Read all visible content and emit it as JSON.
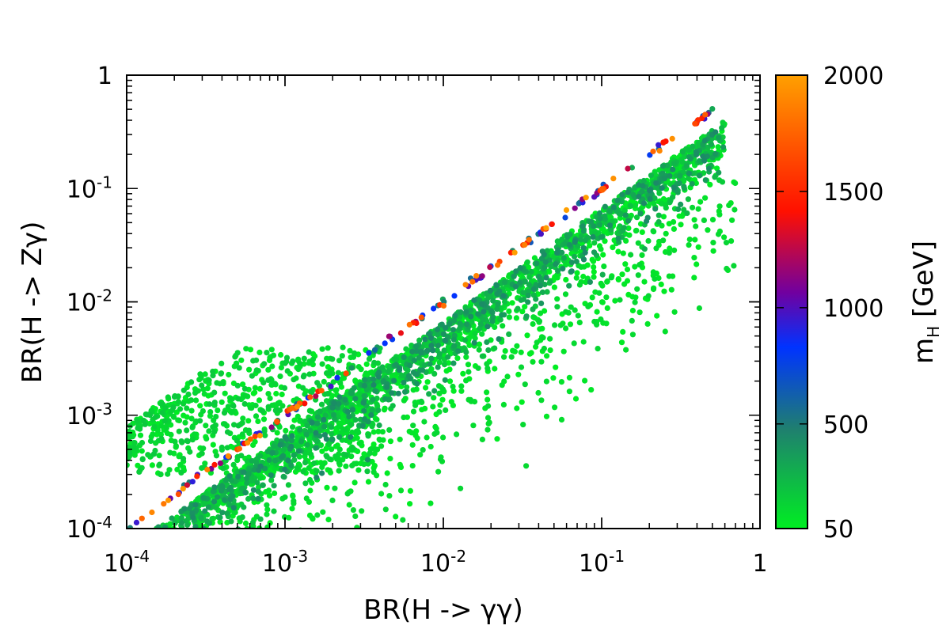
{
  "chart_data": {
    "type": "scatter",
    "xlabel": "BR(H -> γγ)",
    "ylabel": "BR(H -> Zγ)",
    "xscale": "log",
    "yscale": "log",
    "xlim": [
      0.0001,
      1
    ],
    "ylim": [
      0.0001,
      1
    ],
    "x_ticks": [
      {
        "base": "10",
        "exp": "-4"
      },
      {
        "base": "10",
        "exp": "-3"
      },
      {
        "base": "10",
        "exp": "-2"
      },
      {
        "base": "10",
        "exp": "-1"
      },
      {
        "base": "1",
        "exp": ""
      }
    ],
    "y_ticks": [
      {
        "base": "10",
        "exp": "-4"
      },
      {
        "base": "10",
        "exp": "-3"
      },
      {
        "base": "10",
        "exp": "-2"
      },
      {
        "base": "10",
        "exp": "-1"
      },
      {
        "base": "1",
        "exp": ""
      }
    ],
    "colorbar": {
      "label_main": "m",
      "label_sub": "H",
      "label_unit": " [GeV]",
      "range": [
        50,
        2000
      ],
      "tick_values": [
        50,
        500,
        1000,
        1500,
        2000
      ],
      "tick_labels": [
        "50",
        "500",
        "1000",
        "1500",
        "2000"
      ],
      "colormap_stops": [
        "#00ee22",
        "#1f7f6f",
        "#0033ff",
        "#7000a0",
        "#ff1000",
        "#ffa000"
      ]
    },
    "series": [
      {
        "description_bands": true,
        "bands": [
          {
            "type": "diagonal",
            "slope": 1.0,
            "intercept": 0.0,
            "x_range": [
              0.0001,
              0.55
            ],
            "mass_range": [
              300,
              2000
            ],
            "count": 160
          },
          {
            "type": "main",
            "slope": 1.0,
            "intercept": -0.18,
            "spread": 0.22,
            "x_range": [
              0.0001,
              0.6
            ],
            "mass_range": [
              50,
              450
            ],
            "count": 2500
          },
          {
            "type": "upper_lowx",
            "x_range": [
              0.0001,
              0.004
            ],
            "y_range": [
              0.0003,
              0.004
            ],
            "mass_range": [
              50,
              200
            ],
            "count": 700
          },
          {
            "type": "scatter_below",
            "slope": 1.0,
            "intercept": -0.7,
            "spread": 0.45,
            "x_range": [
              0.0003,
              0.7
            ],
            "mass_range": [
              50,
              150
            ],
            "count": 450
          }
        ]
      }
    ]
  }
}
